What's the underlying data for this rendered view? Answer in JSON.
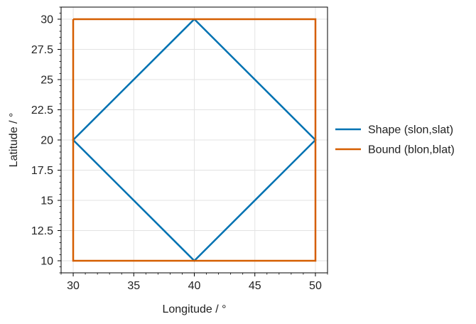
{
  "chart_data": {
    "type": "line",
    "title": "",
    "xlabel": "Longitude / °",
    "ylabel": "Latitude / °",
    "xlim": [
      29,
      51
    ],
    "ylim": [
      9,
      31
    ],
    "grid": true,
    "legend_position": "right",
    "x_ticks": [
      30,
      35,
      40,
      45,
      50
    ],
    "x_tick_labels": [
      "30",
      "35",
      "40",
      "45",
      "50"
    ],
    "y_ticks": [
      10,
      12.5,
      15,
      17.5,
      20,
      22.5,
      25,
      27.5,
      30
    ],
    "y_tick_labels": [
      "10",
      "12.5",
      "15",
      "17.5",
      "20",
      "22.5",
      "25",
      "27.5",
      "30"
    ],
    "series": [
      {
        "name": "Shape (slon,slat)",
        "color": "#0072b2",
        "x": [
          40,
          50,
          40,
          30,
          40
        ],
        "y": [
          30,
          20,
          10,
          20,
          30
        ]
      },
      {
        "name": "Bound (blon,blat)",
        "color": "#d55e00",
        "x": [
          30,
          50,
          50,
          30,
          30
        ],
        "y": [
          30,
          30,
          10,
          10,
          30
        ]
      }
    ]
  }
}
